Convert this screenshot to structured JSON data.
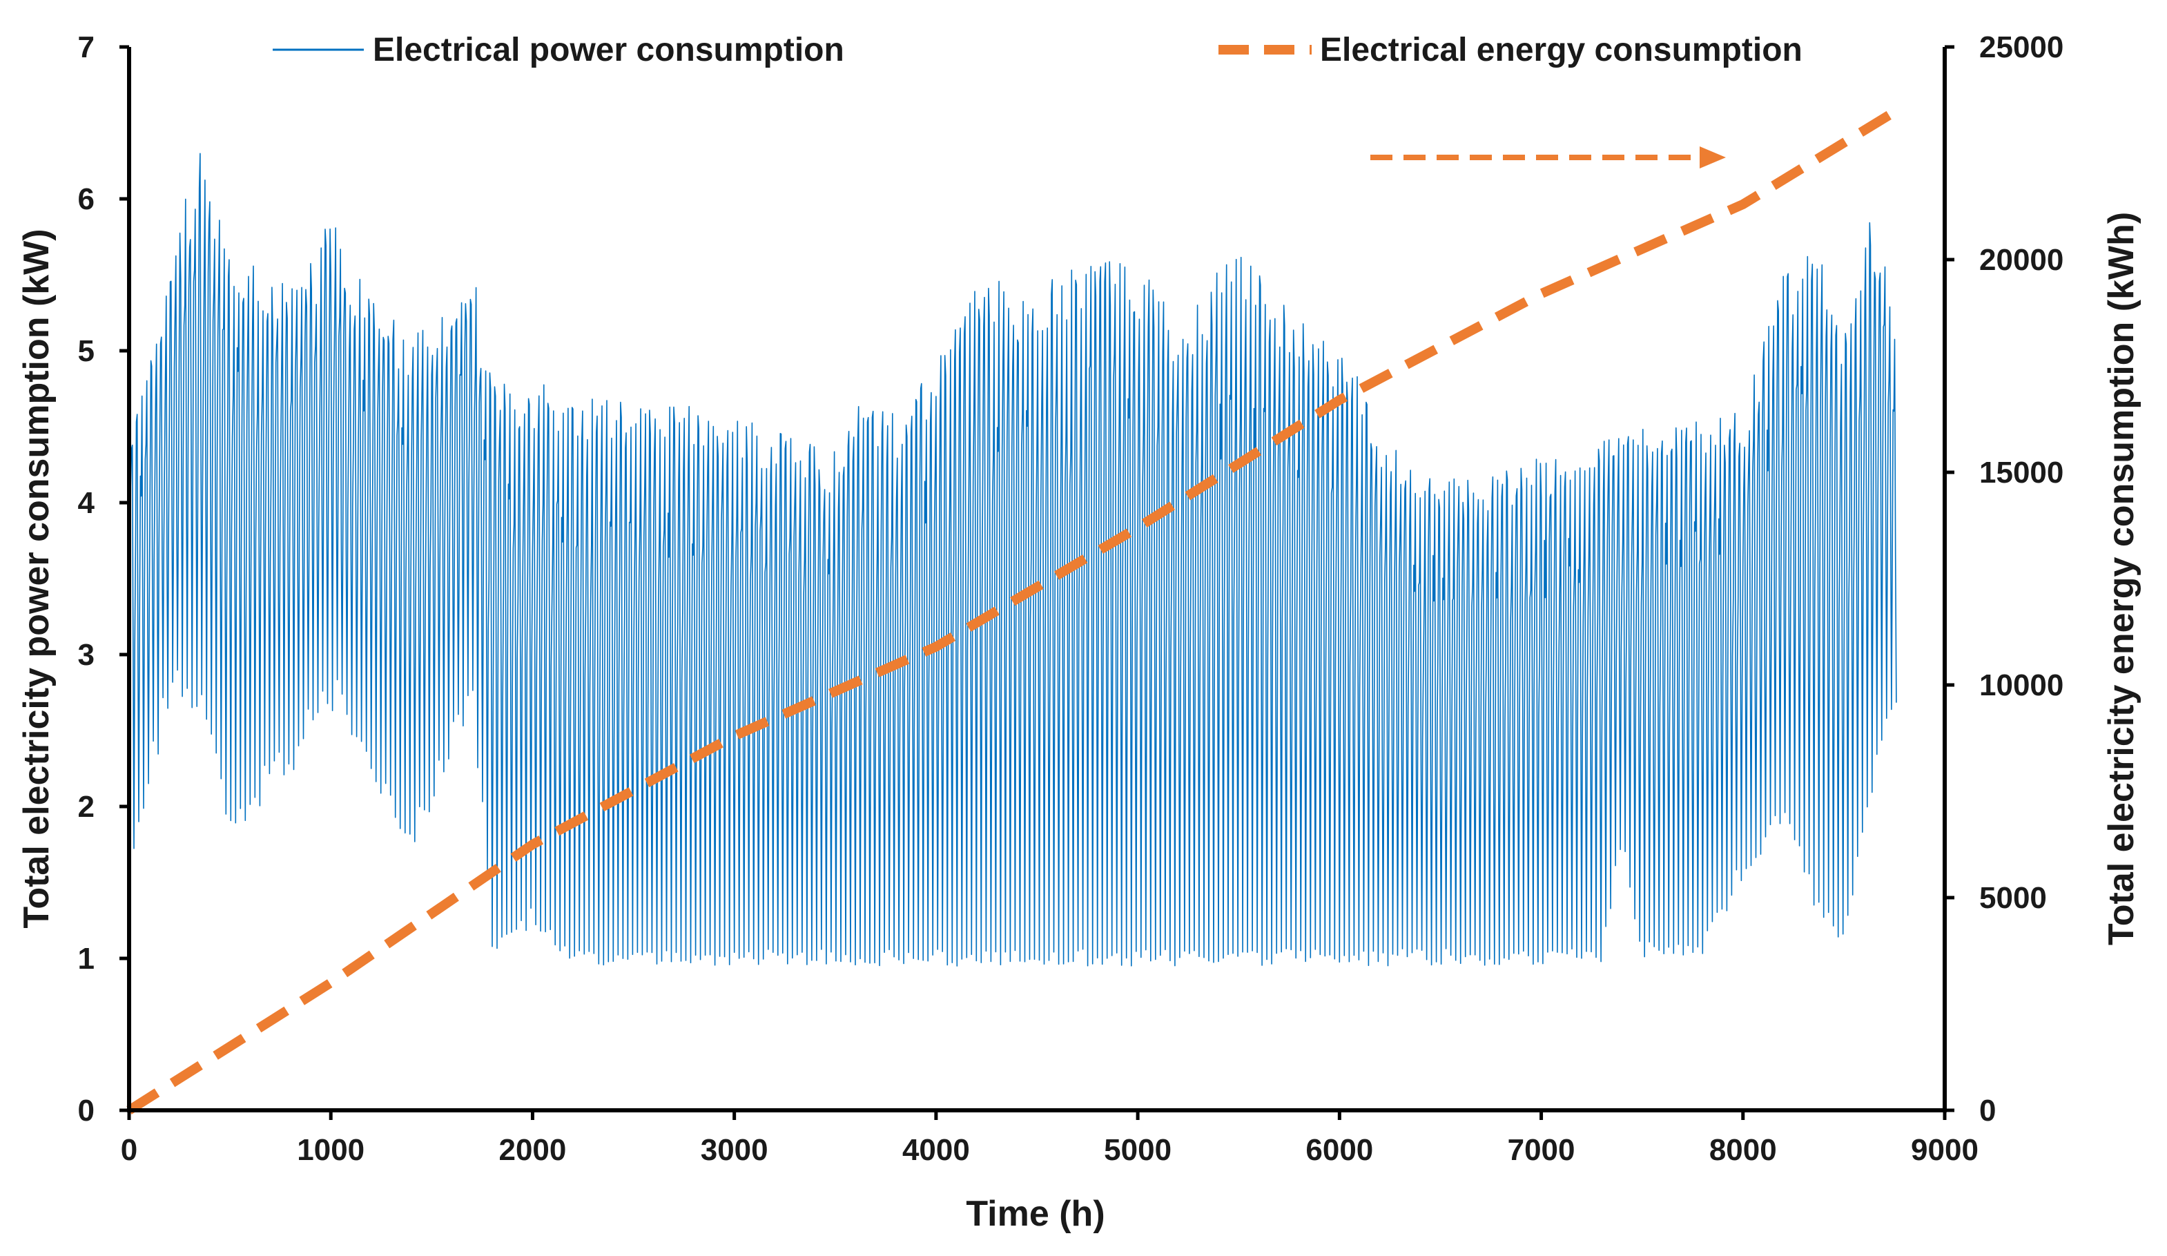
{
  "chart_data": {
    "type": "line",
    "title": "",
    "xlabel": "Time (h)",
    "ylabel_left": "Total electricity power consumption (kW)",
    "ylabel_right": "Total electricity energy consumption (kWh)",
    "xlim": [
      0,
      9000
    ],
    "ylim_left": [
      0,
      7
    ],
    "ylim_right": [
      0,
      25000
    ],
    "x_ticks": [
      "0",
      "1000",
      "2000",
      "3000",
      "4000",
      "5000",
      "6000",
      "7000",
      "8000",
      "9000"
    ],
    "y_left_ticks": [
      "0",
      "1",
      "2",
      "3",
      "4",
      "5",
      "6",
      "7"
    ],
    "y_right_ticks": [
      "0",
      "5000",
      "10000",
      "15000",
      "20000",
      "25000"
    ],
    "grid": false,
    "legend_position": "top",
    "series": [
      {
        "name": "Electrical power consumption",
        "axis": "left",
        "style": "solid-thin",
        "color": "#0070c0",
        "hourly_range_h": [
          0,
          8760
        ],
        "daily_peak_envelope_kw": {
          "x": [
            0,
            100,
            200,
            300,
            350,
            500,
            700,
            900,
            1000,
            1200,
            1400,
            1600,
            1700,
            1800,
            2000,
            2200,
            2500,
            3000,
            3500,
            3600,
            3800,
            4000,
            4200,
            4500,
            4800,
            5000,
            5200,
            5500,
            5800,
            6000,
            6200,
            6500,
            7000,
            7300,
            7500,
            7800,
            8000,
            8200,
            8400,
            8500,
            8600,
            8700,
            8760
          ],
          "y": [
            4.6,
            4.9,
            5.6,
            6.1,
            6.4,
            5.7,
            5.5,
            5.6,
            5.9,
            5.4,
            5.1,
            5.3,
            5.6,
            4.8,
            4.8,
            4.75,
            4.7,
            4.6,
            4.35,
            4.7,
            4.6,
            4.9,
            5.5,
            5.4,
            5.7,
            5.6,
            5.2,
            5.7,
            5.2,
            5.1,
            4.5,
            4.15,
            4.3,
            4.4,
            4.5,
            4.55,
            4.6,
            5.5,
            5.7,
            5.1,
            5.9,
            5.8,
            5.1
          ]
        },
        "daily_base_envelope_kw": {
          "x": [
            0,
            100,
            200,
            300,
            400,
            500,
            800,
            1000,
            1200,
            1400,
            1600,
            1700,
            1800,
            2000,
            2200,
            2300,
            3000,
            4000,
            5000,
            6000,
            7000,
            7300,
            7400,
            7500,
            7800,
            8000,
            8200,
            8400,
            8500,
            8600,
            8700,
            8760
          ],
          "y": [
            1.4,
            2.1,
            2.6,
            2.6,
            2.4,
            1.8,
            2.2,
            2.6,
            2.2,
            1.7,
            2.3,
            2.7,
            1.0,
            1.2,
            0.95,
            0.95,
            0.95,
            0.95,
            0.95,
            0.95,
            0.95,
            0.95,
            1.7,
            1.0,
            1.0,
            1.5,
            1.8,
            1.2,
            1.1,
            1.8,
            2.3,
            2.5
          ]
        }
      },
      {
        "name": "Electrical energy consumption",
        "axis": "right",
        "style": "dashed-thick",
        "color": "#ed7d31",
        "x": [
          0,
          1000,
          2000,
          3000,
          4000,
          5000,
          6000,
          7000,
          8000,
          8760
        ],
        "y": [
          0,
          3000,
          6250,
          8800,
          10900,
          13700,
          16700,
          19200,
          21300,
          23500
        ]
      }
    ],
    "annotations": [
      {
        "type": "arrow",
        "direction": "right",
        "style": "dashed",
        "color": "#ed7d31",
        "meaning": "energy series uses right axis"
      }
    ]
  }
}
